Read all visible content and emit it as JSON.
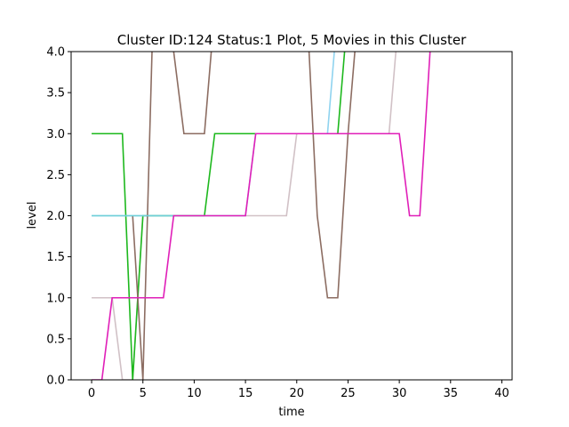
{
  "chart_data": {
    "type": "line",
    "title": "Cluster ID:124 Status:1 Plot, 5 Movies in this Cluster",
    "xlabel": "time",
    "ylabel": "level",
    "xlim": [
      -2,
      41
    ],
    "ylim": [
      0,
      4
    ],
    "xticks": [
      0,
      5,
      10,
      15,
      20,
      25,
      30,
      35,
      40
    ],
    "yticks": [
      0.0,
      0.5,
      1.0,
      1.5,
      2.0,
      2.5,
      3.0,
      3.5,
      4.0
    ],
    "xtick_labels": [
      "0",
      "5",
      "10",
      "15",
      "20",
      "25",
      "30",
      "35",
      "40"
    ],
    "ytick_labels": [
      "0.0",
      "0.5",
      "1.0",
      "1.5",
      "2.0",
      "2.5",
      "3.0",
      "3.5",
      "4.0"
    ],
    "grid": false,
    "legend": "none",
    "series": [
      {
        "color": "#d1c1c6",
        "x": [
          0,
          1,
          2,
          3,
          4,
          5,
          6,
          7,
          8,
          9,
          10,
          11,
          12,
          13,
          14,
          15,
          16,
          17,
          18,
          19,
          20,
          21,
          22,
          23,
          24,
          25,
          26,
          27,
          28,
          29,
          30
        ],
        "y": [
          1,
          1,
          1,
          0,
          0,
          2,
          2,
          2,
          2,
          2,
          2,
          2,
          2,
          2,
          2,
          2,
          2,
          2,
          2,
          2,
          3,
          3,
          3,
          3,
          3,
          3,
          3,
          3,
          3,
          3,
          4.5
        ]
      },
      {
        "color": "#1db81d",
        "x": [
          0,
          1,
          2,
          3,
          4,
          5,
          6,
          7,
          8,
          9,
          10,
          11,
          12,
          13,
          14,
          15,
          16,
          17,
          18,
          19,
          20,
          21,
          22,
          23,
          24,
          25
        ],
        "y": [
          3,
          3,
          3,
          3,
          0,
          2,
          2,
          2,
          2,
          2,
          2,
          2,
          3,
          3,
          3,
          3,
          3,
          3,
          3,
          3,
          3,
          3,
          3,
          3,
          3,
          4.5
        ]
      },
      {
        "color": "#8fd3ef",
        "x": [
          0,
          1,
          2,
          3,
          4,
          5,
          6,
          7,
          8,
          9,
          10,
          11,
          12,
          13,
          14,
          15,
          16,
          17,
          18,
          19,
          20,
          21,
          22,
          23,
          24
        ],
        "y": [
          2,
          2,
          2,
          2,
          2,
          2,
          2,
          2,
          2,
          2,
          2,
          2,
          2,
          2,
          2,
          2,
          3,
          3,
          3,
          3,
          3,
          3,
          3,
          3,
          4.5
        ]
      },
      {
        "color": "#8c6d62",
        "x": [
          4,
          5,
          6,
          7,
          8,
          9,
          10,
          11,
          12,
          21,
          22,
          23,
          24,
          25,
          26
        ],
        "y": [
          2,
          0,
          4.5,
          4.5,
          4,
          3,
          3,
          3,
          4.5,
          4.5,
          2,
          1,
          1,
          3,
          4.5
        ]
      },
      {
        "color": "#6fcfd8",
        "x": [
          0,
          1,
          2,
          3,
          4,
          5,
          6,
          7,
          8
        ],
        "y": [
          2,
          2,
          2,
          2,
          2,
          2,
          2,
          2,
          2
        ]
      },
      {
        "color": "#e01fb8",
        "x": [
          0,
          1,
          2,
          3,
          4,
          5,
          6,
          7,
          8,
          9,
          10,
          11,
          12,
          13,
          14,
          15,
          16,
          17,
          18,
          19,
          20,
          21,
          22,
          23,
          24,
          25,
          26,
          27,
          28,
          29,
          30,
          31,
          32,
          33
        ],
        "y": [
          0,
          0,
          1,
          1,
          1,
          1,
          1,
          1,
          2,
          2,
          2,
          2,
          2,
          2,
          2,
          2,
          3,
          3,
          3,
          3,
          3,
          3,
          3,
          3,
          3,
          3,
          3,
          3,
          3,
          3,
          3,
          2,
          2,
          4
        ]
      }
    ]
  }
}
